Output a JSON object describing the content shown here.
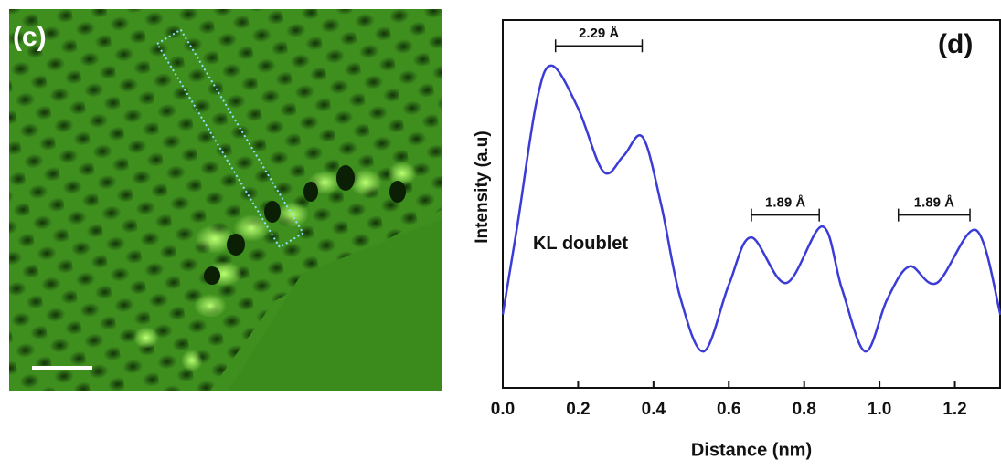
{
  "image_panel": {
    "label": "(c)"
  },
  "chart_data": {
    "type": "line",
    "x": [
      0,
      0.04,
      0.09,
      0.131,
      0.2,
      0.267,
      0.32,
      0.371,
      0.42,
      0.47,
      0.533,
      0.6,
      0.659,
      0.752,
      0.848,
      0.9,
      0.962,
      1.02,
      1.079,
      1.152,
      1.256,
      1.321
    ],
    "values": [
      0.2,
      0.45,
      0.78,
      0.876,
      0.76,
      0.588,
      0.63,
      0.682,
      0.5,
      0.25,
      0.099,
      0.28,
      0.409,
      0.285,
      0.439,
      0.27,
      0.099,
      0.24,
      0.33,
      0.285,
      0.429,
      0.199
    ],
    "color": "#3b3bd8",
    "xlim": [
      0,
      1.32
    ],
    "ylim": [
      0,
      1
    ],
    "xticks": [
      {
        "value": 0,
        "label": "0.0"
      },
      0.2,
      0.4,
      0.6,
      0.8,
      {
        "value": 1,
        "label": "1.0"
      },
      1.2
    ],
    "xlabel": "Distance (nm)",
    "ylabel": "Intensity (a.u)",
    "annotations": [
      {
        "text": "2.29 Å",
        "x": [
          0.14,
          0.37
        ],
        "y": 0.93
      },
      {
        "text": "1.89 Å",
        "x": [
          0.66,
          0.84
        ],
        "y": 0.47
      },
      {
        "text": "1.89 Å",
        "x": [
          1.05,
          1.24
        ],
        "y": 0.47
      }
    ],
    "notes": [
      {
        "text": "KL doublet",
        "x": 0.08,
        "y": 0.39
      },
      {
        "text": "(d)",
        "x": 1.155,
        "y": 0.93
      }
    ]
  }
}
